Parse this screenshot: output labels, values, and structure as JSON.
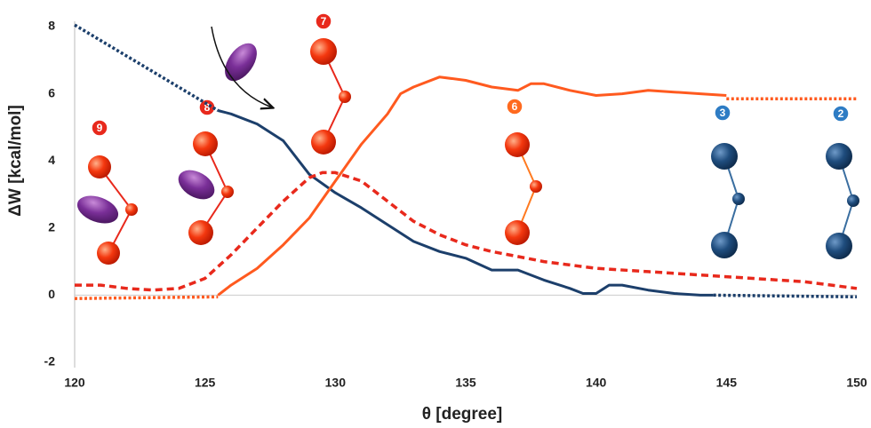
{
  "chart_data": {
    "type": "line",
    "x_label": "θ [degree]",
    "y_label": "ΔW [kcal/mol]",
    "xlim": [
      120,
      150
    ],
    "xticks": [
      120,
      125,
      130,
      135,
      140,
      145,
      150
    ],
    "ylim": [
      -2,
      8
    ],
    "yticks": [
      -2,
      0,
      2,
      4,
      6,
      8
    ],
    "series": [
      {
        "color": "#1c3f6b",
        "style": "dotted",
        "x": [
          120,
          125.5
        ],
        "values": [
          8.05,
          5.5
        ]
      },
      {
        "color": "#1c3f6b",
        "style": "solid",
        "x": [
          125.5,
          126,
          127,
          128,
          129,
          130,
          131,
          132,
          133,
          134,
          135,
          136,
          137,
          138,
          139,
          139.5,
          140,
          140.5,
          141,
          142,
          143,
          144,
          144.5
        ],
        "values": [
          5.5,
          5.4,
          5.1,
          4.6,
          3.6,
          3.05,
          2.6,
          2.1,
          1.6,
          1.3,
          1.1,
          0.75,
          0.75,
          0.45,
          0.2,
          0.05,
          0.05,
          0.3,
          0.3,
          0.15,
          0.05,
          0.0,
          0.0
        ]
      },
      {
        "color": "#1c3f6b",
        "style": "dotted",
        "x": [
          144.5,
          150
        ],
        "values": [
          0.0,
          -0.05
        ]
      },
      {
        "color": "#ff5a1f",
        "style": "dotted",
        "x": [
          120,
          125.5
        ],
        "values": [
          -0.1,
          -0.05
        ]
      },
      {
        "color": "#ff5a1f",
        "style": "solid",
        "x": [
          125.5,
          126,
          127,
          128,
          129,
          130,
          131,
          132,
          132.5,
          133,
          134,
          135,
          136,
          137,
          137.5,
          138,
          139,
          140,
          141,
          142,
          143,
          144,
          145
        ],
        "values": [
          0,
          0.3,
          0.8,
          1.5,
          2.3,
          3.4,
          4.5,
          5.4,
          6.0,
          6.2,
          6.5,
          6.4,
          6.2,
          6.1,
          6.3,
          6.3,
          6.1,
          5.95,
          6.0,
          6.1,
          6.05,
          6.0,
          5.95
        ]
      },
      {
        "color": "#ff5a1f",
        "style": "dotted",
        "x": [
          145,
          150
        ],
        "values": [
          5.85,
          5.85
        ]
      },
      {
        "color": "#e8291c",
        "style": "dashed",
        "x": [
          120,
          121,
          122,
          123,
          124,
          125,
          126,
          127,
          128,
          129,
          129.5,
          130,
          131,
          132,
          133,
          134,
          135,
          136,
          137,
          138,
          140,
          142,
          144,
          146,
          148,
          150
        ],
        "values": [
          0.3,
          0.3,
          0.2,
          0.15,
          0.2,
          0.5,
          1.2,
          2.0,
          2.8,
          3.5,
          3.65,
          3.65,
          3.4,
          2.8,
          2.2,
          1.8,
          1.5,
          1.3,
          1.15,
          1.0,
          0.8,
          0.7,
          0.6,
          0.5,
          0.4,
          0.2
        ]
      }
    ],
    "annotations": [
      "9",
      "8",
      "7",
      "6",
      "3",
      "2"
    ]
  }
}
